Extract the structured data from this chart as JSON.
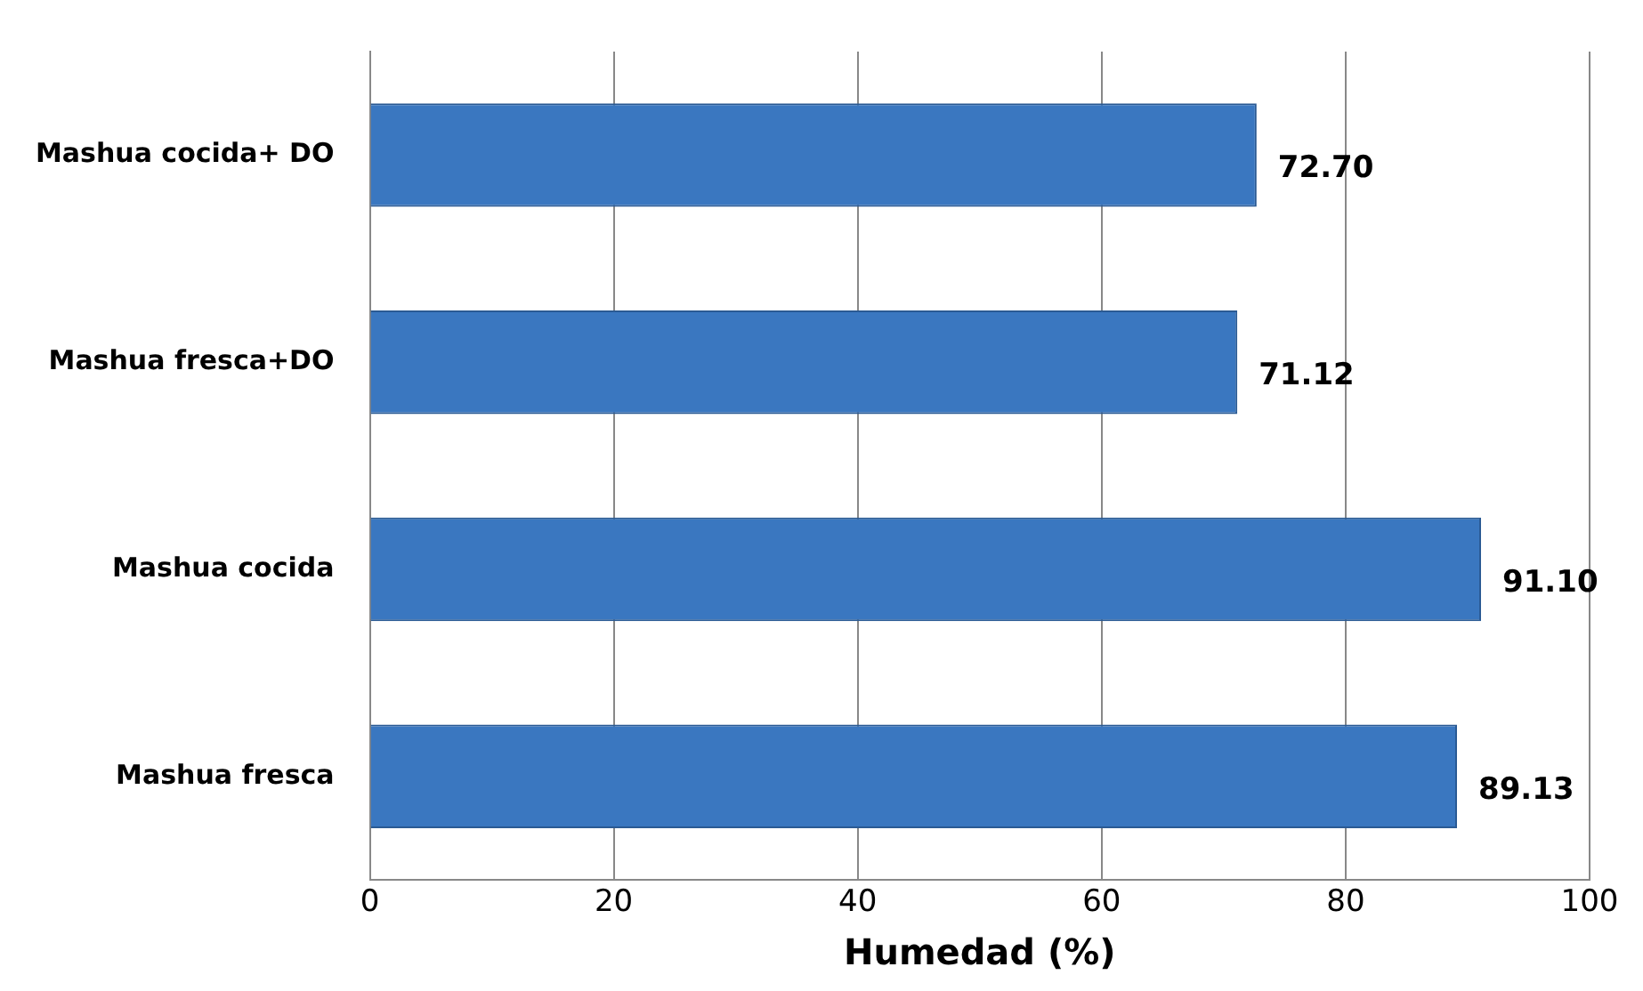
{
  "chart_data": {
    "type": "bar",
    "orientation": "horizontal",
    "xlabel": "Humedad (%)",
    "categories": [
      "Mashua cocida+ DO",
      "Mashua fresca+DO",
      "Mashua cocida",
      "Mashua fresca"
    ],
    "values": [
      72.7,
      71.12,
      91.1,
      89.13
    ],
    "value_labels": [
      "72.70",
      "71.12",
      "91.10",
      "89.13"
    ],
    "color": "#3a77c0",
    "xlim": [
      0,
      100
    ],
    "xticks": [
      0,
      20,
      40,
      60,
      80,
      100
    ],
    "grid": "x",
    "legend": false
  }
}
